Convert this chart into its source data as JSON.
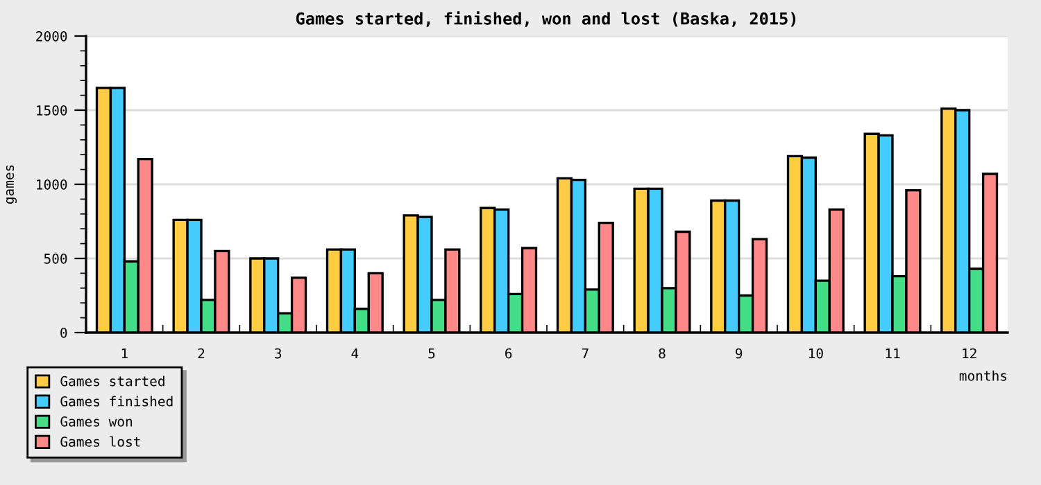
{
  "chart_data": {
    "type": "bar",
    "title": "Games started, finished, won and lost (Baska, 2015)",
    "xlabel": "months",
    "ylabel": "games",
    "categories": [
      "1",
      "2",
      "3",
      "4",
      "5",
      "6",
      "7",
      "8",
      "9",
      "10",
      "11",
      "12"
    ],
    "series": [
      {
        "name": "Games started",
        "color": "#ffcc44",
        "values": [
          1650,
          760,
          500,
          560,
          790,
          840,
          1040,
          970,
          890,
          1190,
          1340,
          1510
        ]
      },
      {
        "name": "Games finished",
        "color": "#44ccff",
        "values": [
          1650,
          760,
          500,
          560,
          780,
          830,
          1030,
          970,
          890,
          1180,
          1330,
          1500
        ]
      },
      {
        "name": "Games won",
        "color": "#44dd88",
        "values": [
          480,
          220,
          130,
          160,
          220,
          260,
          290,
          300,
          250,
          350,
          380,
          430
        ]
      },
      {
        "name": "Games lost",
        "color": "#ff8888",
        "values": [
          1170,
          550,
          370,
          400,
          560,
          570,
          740,
          680,
          630,
          830,
          960,
          1070
        ]
      }
    ],
    "ylim": [
      0,
      2000
    ],
    "yticks": [
      0,
      500,
      1000,
      1500,
      2000
    ],
    "grid": "y",
    "legend": "bottom left"
  }
}
